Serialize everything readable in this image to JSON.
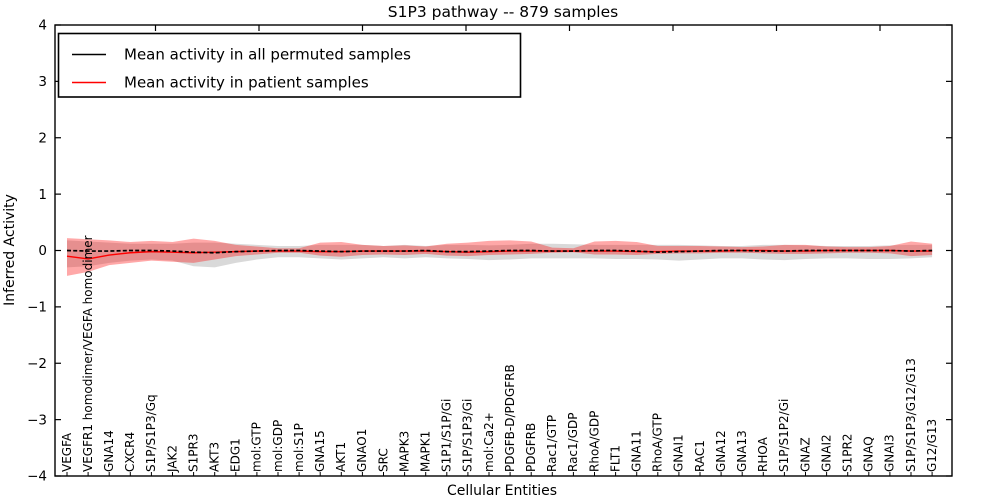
{
  "figure": {
    "title": "S1P3 pathway -- 879 samples",
    "xlabel": "Cellular Entities",
    "ylabel": "Inferred Activity"
  },
  "colors": {
    "permuted_line": "#000000",
    "patient_line": "#ff0000",
    "permuted_band": "rgba(110,110,110,0.26)",
    "patient_band": "rgba(255,0,0,0.34)",
    "axis": "#000000",
    "background": "#ffffff"
  },
  "chart_data": {
    "type": "line",
    "title": "S1P3 pathway -- 879 samples",
    "xlabel": "Cellular Entities",
    "ylabel": "Inferred Activity",
    "ylim": [
      -4,
      4
    ],
    "yticks": [
      -4,
      -3,
      -2,
      -1,
      0,
      1,
      2,
      3,
      4
    ],
    "grid": false,
    "legend_position": "upper left",
    "categories": [
      "VEGFA",
      "VEGFR1 homodimer/VEGFA homodimer",
      "GNA14",
      "CXCR4",
      "S1P/S1P3/Gq",
      "JAK2",
      "S1PR3",
      "AKT3",
      "EDG1",
      "mol:GTP",
      "mol:GDP",
      "mol:S1P",
      "GNA15",
      "AKT1",
      "GNAO1",
      "SRC",
      "MAPK3",
      "MAPK1",
      "S1P1/S1P/Gi",
      "S1P/S1P3/Gi",
      "mol:Ca2+",
      "PDGFB-D/PDGFRB",
      "PDGFRB",
      "Rac1/GTP",
      "Rac1/GDP",
      "RhoA/GDP",
      "FLT1",
      "GNA11",
      "RhoA/GTP",
      "GNAI1",
      "RAC1",
      "GNA12",
      "GNA13",
      "RHOA",
      "S1P/S1P2/Gi",
      "GNAZ",
      "GNAI2",
      "S1PR2",
      "GNAQ",
      "GNAI3",
      "S1P/S1P3/G12/G13",
      "G12/G13"
    ],
    "series": [
      {
        "name": "Mean activity in all permuted samples",
        "color": "#000000",
        "line_style": "dashed",
        "values": [
          0,
          -0.01,
          -0.01,
          0,
          0,
          -0.01,
          -0.03,
          -0.04,
          -0.02,
          -0.01,
          0,
          0,
          -0.01,
          -0.02,
          -0.01,
          -0.01,
          -0.01,
          0,
          -0.02,
          -0.02,
          -0.01,
          0,
          0,
          -0.01,
          -0.01,
          0,
          0,
          -0.01,
          -0.03,
          -0.02,
          -0.01,
          0,
          0,
          -0.01,
          -0.01,
          0,
          0,
          0,
          0,
          0,
          -0.01,
          0
        ]
      },
      {
        "name": "Mean activity in patient samples",
        "color": "#ff0000",
        "line_style": "solid",
        "values": [
          -0.1,
          -0.15,
          -0.08,
          -0.04,
          -0.02,
          -0.03,
          -0.04,
          -0.03,
          -0.02,
          -0.01,
          -0.01,
          -0.01,
          -0.02,
          -0.02,
          -0.01,
          -0.01,
          -0.01,
          -0.01,
          -0.02,
          -0.03,
          -0.02,
          -0.01,
          -0.01,
          -0.01,
          -0.01,
          -0.01,
          -0.01,
          -0.02,
          -0.02,
          -0.01,
          -0.01,
          -0.01,
          0,
          0,
          -0.01,
          -0.01,
          0,
          0,
          0,
          0,
          -0.01,
          -0.01
        ]
      }
    ],
    "bands": [
      {
        "name": "Permuted samples spread",
        "color": "rgba(110,110,110,0.26)",
        "upper": [
          0.18,
          0.16,
          0.14,
          0.12,
          0.12,
          0.12,
          0.14,
          0.14,
          0.12,
          0.1,
          0.08,
          0.08,
          0.1,
          0.1,
          0.1,
          0.08,
          0.1,
          0.08,
          0.1,
          0.1,
          0.09,
          0.1,
          0.12,
          0.12,
          0.11,
          0.1,
          0.1,
          0.1,
          0.1,
          0.1,
          0.09,
          0.08,
          0.08,
          0.1,
          0.1,
          0.09,
          0.08,
          0.08,
          0.08,
          0.09,
          0.1,
          0.1
        ],
        "lower": [
          -0.3,
          -0.28,
          -0.22,
          -0.18,
          -0.16,
          -0.18,
          -0.28,
          -0.3,
          -0.22,
          -0.16,
          -0.12,
          -0.12,
          -0.14,
          -0.16,
          -0.14,
          -0.12,
          -0.14,
          -0.12,
          -0.14,
          -0.15,
          -0.17,
          -0.16,
          -0.14,
          -0.14,
          -0.14,
          -0.14,
          -0.15,
          -0.15,
          -0.16,
          -0.18,
          -0.16,
          -0.14,
          -0.14,
          -0.16,
          -0.17,
          -0.15,
          -0.14,
          -0.14,
          -0.15,
          -0.15,
          -0.14,
          -0.12
        ]
      },
      {
        "name": "Patient samples spread",
        "color": "rgba(255,0,0,0.34)",
        "upper": [
          0.22,
          0.2,
          0.18,
          0.15,
          0.17,
          0.15,
          0.21,
          0.17,
          0.1,
          0.07,
          0.04,
          0.04,
          0.14,
          0.15,
          0.1,
          0.08,
          0.09,
          0.07,
          0.12,
          0.14,
          0.17,
          0.18,
          0.16,
          0.05,
          0.04,
          0.16,
          0.17,
          0.15,
          0.08,
          0.08,
          0.08,
          0.07,
          0.06,
          0.07,
          0.1,
          0.1,
          0.07,
          0.06,
          0.06,
          0.08,
          0.16,
          0.12
        ],
        "lower": [
          -0.45,
          -0.38,
          -0.26,
          -0.22,
          -0.18,
          -0.2,
          -0.22,
          -0.16,
          -0.1,
          -0.07,
          -0.04,
          -0.04,
          -0.09,
          -0.11,
          -0.08,
          -0.07,
          -0.08,
          -0.06,
          -0.09,
          -0.1,
          -0.08,
          -0.07,
          -0.06,
          -0.04,
          -0.03,
          -0.07,
          -0.07,
          -0.08,
          -0.06,
          -0.05,
          -0.05,
          -0.04,
          -0.04,
          -0.05,
          -0.06,
          -0.06,
          -0.05,
          -0.04,
          -0.04,
          -0.05,
          -0.1,
          -0.08
        ]
      }
    ]
  }
}
